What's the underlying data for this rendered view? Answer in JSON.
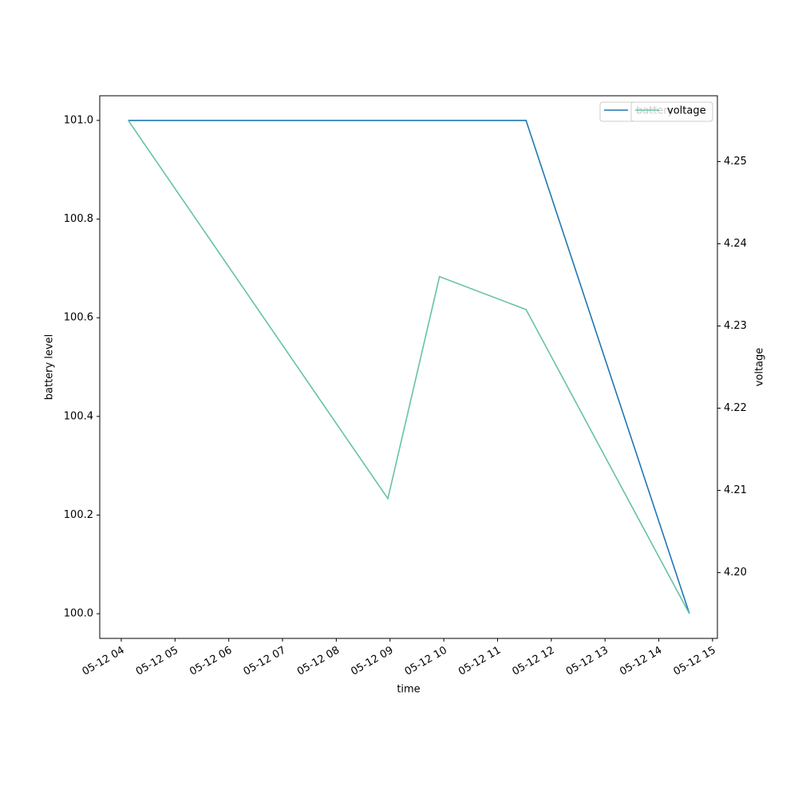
{
  "chart_data": {
    "type": "line",
    "xlabel": "time",
    "ylabel": "battery level",
    "y2label": "voltage",
    "xlim": [
      3.6,
      15.09
    ],
    "xticks": [
      {
        "value": 4,
        "label": "05-12 04"
      },
      {
        "value": 5,
        "label": "05-12 05"
      },
      {
        "value": 6,
        "label": "05-12 06"
      },
      {
        "value": 7,
        "label": "05-12 07"
      },
      {
        "value": 8,
        "label": "05-12 08"
      },
      {
        "value": 9,
        "label": "05-12 09"
      },
      {
        "value": 10,
        "label": "05-12 10"
      },
      {
        "value": 11,
        "label": "05-12 11"
      },
      {
        "value": 12,
        "label": "05-12 12"
      },
      {
        "value": 13,
        "label": "05-12 13"
      },
      {
        "value": 14,
        "label": "05-12 14"
      },
      {
        "value": 15,
        "label": "05-12 15"
      }
    ],
    "ylim": [
      99.95,
      101.05
    ],
    "yticks": [
      {
        "value": 100,
        "label": "100.0"
      },
      100.2,
      100.4,
      100.6,
      100.8,
      {
        "value": 101,
        "label": "101.0"
      }
    ],
    "y2lim": [
      4.192,
      4.258
    ],
    "y2ticks": [
      {
        "value": 4.2,
        "label": "4.20"
      },
      4.21,
      4.22,
      4.23,
      4.24,
      4.25
    ],
    "legend": "upper right",
    "series": [
      {
        "name": "battery",
        "color": "#1f77b4",
        "x": [
          4.13,
          11.53,
          14.57
        ],
        "values": [
          101,
          101,
          100
        ]
      },
      {
        "name": "voltage",
        "color": "#66c2a5",
        "axis": "y2",
        "x": [
          4.13,
          8.96,
          9.92,
          11.53,
          14.57
        ],
        "values": [
          4.255,
          4.209,
          4.236,
          4.232,
          4.195
        ]
      }
    ]
  }
}
